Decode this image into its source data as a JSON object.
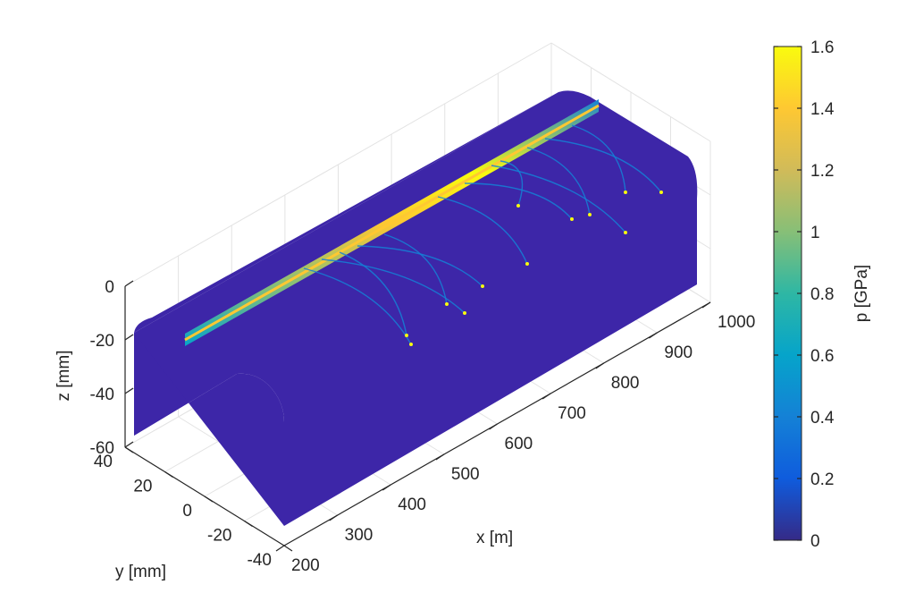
{
  "chart_data": {
    "type": "surface",
    "xlabel": "x [m]",
    "ylabel": "y [mm]",
    "zlabel": "z [mm]",
    "x_ticks": [
      "200",
      "300",
      "400",
      "500",
      "600",
      "700",
      "800",
      "900",
      "1000"
    ],
    "y_ticks": [
      "40",
      "20",
      "0",
      "-20",
      "-40"
    ],
    "z_ticks": [
      "0",
      "-20",
      "-40",
      "-60"
    ],
    "xlim": [
      200,
      1000
    ],
    "ylim": [
      -40,
      40
    ],
    "zlim": [
      -60,
      0
    ],
    "surface": {
      "description_values": {
        "crown_z": -5,
        "flank_z": -60,
        "width_mm": 70
      },
      "base_color": "#3d26a8"
    },
    "contact_band": {
      "y_position": 5,
      "peak_pressure_GPa": 1.6,
      "x_range": [
        200,
        1000
      ]
    },
    "colorbar": {
      "label": "p [GPa]",
      "ticks": [
        "0",
        "0.2",
        "0.4",
        "0.6",
        "0.8",
        "1",
        "1.2",
        "1.4",
        "1.6"
      ],
      "range": [
        0,
        1.6
      ],
      "colormap": "parula",
      "colors": [
        "#352a87",
        "#0f5cdd",
        "#1481d6",
        "#06a4ca",
        "#2eb7a4",
        "#87bf77",
        "#d1bb59",
        "#fec832",
        "#f9fb0e"
      ]
    },
    "grid": true
  }
}
